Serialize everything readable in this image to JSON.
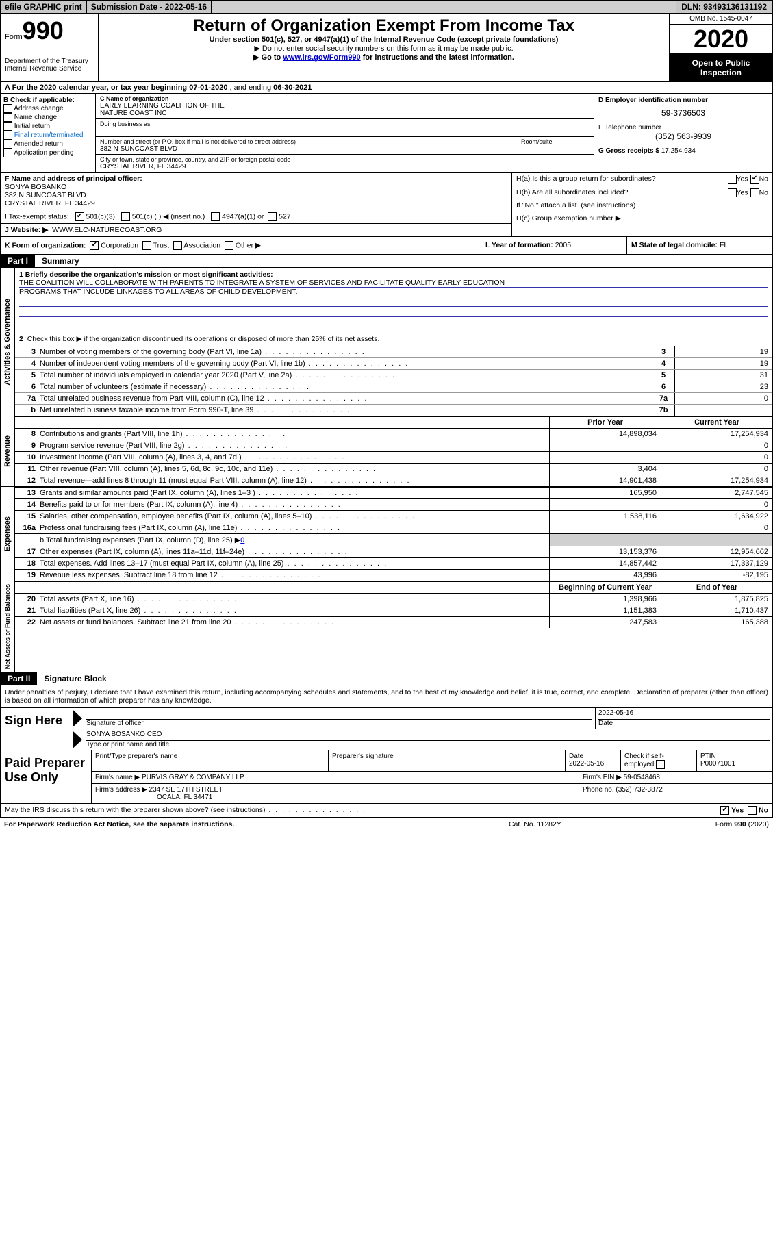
{
  "topbar": {
    "efile": "efile GRAPHIC print",
    "subdate_lbl": "Submission Date - ",
    "subdate": "2022-05-16",
    "dln_lbl": "DLN: ",
    "dln": "93493136131192"
  },
  "header": {
    "form_prefix": "Form",
    "form_no": "990",
    "title": "Return of Organization Exempt From Income Tax",
    "sub1": "Under section 501(c), 527, or 4947(a)(1) of the Internal Revenue Code (except private foundations)",
    "sub2": "▶ Do not enter social security numbers on this form as it may be made public.",
    "sub3_pre": "▶ Go to ",
    "sub3_link": "www.irs.gov/Form990",
    "sub3_post": " for instructions and the latest information.",
    "dept1": "Department of the Treasury",
    "dept2": "Internal Revenue Service",
    "omb": "OMB No. 1545-0047",
    "year": "2020",
    "open": "Open to Public Inspection"
  },
  "row_a": {
    "pre": "A For the 2020 calendar year, or tax year beginning ",
    "d1": "07-01-2020",
    "mid": " , and ending ",
    "d2": "06-30-2021"
  },
  "col_b": {
    "hdr": "B Check if applicable:",
    "addr": "Address change",
    "name": "Name change",
    "init": "Initial return",
    "final": "Final return/terminated",
    "amend": "Amended return",
    "app": "Application pending"
  },
  "col_c": {
    "name_lbl": "C Name of organization",
    "name1": "EARLY LEARNING COALITION OF THE",
    "name2": "NATURE COAST INC",
    "dba": "Doing business as",
    "addr_lbl": "Number and street (or P.O. box if mail is not delivered to street address)",
    "room_lbl": "Room/suite",
    "addr": "382 N SUNCOAST BLVD",
    "city_lbl": "City or town, state or province, country, and ZIP or foreign postal code",
    "city": "CRYSTAL RIVER, FL  34429"
  },
  "col_d": {
    "ein_lbl": "D Employer identification number",
    "ein": "59-3736503",
    "tel_lbl": "E Telephone number",
    "tel": "(352) 563-9939",
    "gross_lbl": "G Gross receipts $ ",
    "gross": "17,254,934"
  },
  "f": {
    "lbl": "F Name and address of principal officer:",
    "name": "SONYA BOSANKO",
    "addr1": "382 N SUNCOAST BLVD",
    "addr2": "CRYSTAL RIVER, FL  34429"
  },
  "h": {
    "a": "H(a)  Is this a group return for subordinates?",
    "b": "H(b)  Are all subordinates included?",
    "bnote": "If \"No,\" attach a list. (see instructions)",
    "c": "H(c)  Group exemption number ▶",
    "yes": "Yes",
    "no": "No"
  },
  "i": {
    "lbl": "I    Tax-exempt status:",
    "o1": "501(c)(3)",
    "o2": "501(c) (   ) ◀ (insert no.)",
    "o3": "4947(a)(1) or",
    "o4": "527"
  },
  "j": {
    "lbl": "J    Website: ▶",
    "val": "WWW.ELC-NATURECOAST.ORG"
  },
  "k": {
    "lbl": "K Form of organization:",
    "o1": "Corporation",
    "o2": "Trust",
    "o3": "Association",
    "o4": "Other ▶",
    "l_lbl": "L Year of formation: ",
    "l_val": "2005",
    "m_lbl": "M State of legal domicile: ",
    "m_val": "FL"
  },
  "part1": {
    "tab": "Part I",
    "title": "Summary"
  },
  "gov": {
    "label": "Activities & Governance",
    "l1": "1   Briefly describe the organization's mission or most significant activities:",
    "mission1": "THE COALITION WILL COLLABORATE WITH PARENTS TO INTEGRATE A SYSTEM OF SERVICES AND FACILITATE QUALITY EARLY EDUCATION",
    "mission2": "PROGRAMS THAT INCLUDE LINKAGES TO ALL AREAS OF CHILD DEVELOPMENT.",
    "l2": "Check this box ▶        if the organization discontinued its operations or disposed of more than 25% of its net assets.",
    "rows": [
      {
        "n": "3",
        "lbl": "Number of voting members of the governing body (Part VI, line 1a)",
        "box": "3",
        "val": "19"
      },
      {
        "n": "4",
        "lbl": "Number of independent voting members of the governing body (Part VI, line 1b)",
        "box": "4",
        "val": "19"
      },
      {
        "n": "5",
        "lbl": "Total number of individuals employed in calendar year 2020 (Part V, line 2a)",
        "box": "5",
        "val": "31"
      },
      {
        "n": "6",
        "lbl": "Total number of volunteers (estimate if necessary)",
        "box": "6",
        "val": "23"
      },
      {
        "n": "7a",
        "lbl": "Total unrelated business revenue from Part VIII, column (C), line 12",
        "box": "7a",
        "val": "0"
      },
      {
        "n": "b",
        "lbl": "Net unrelated business taxable income from Form 990-T, line 39",
        "box": "7b",
        "val": ""
      }
    ]
  },
  "rev": {
    "label": "Revenue",
    "hdr_py": "Prior Year",
    "hdr_cy": "Current Year",
    "rows": [
      {
        "n": "8",
        "lbl": "Contributions and grants (Part VIII, line 1h)",
        "py": "14,898,034",
        "cy": "17,254,934"
      },
      {
        "n": "9",
        "lbl": "Program service revenue (Part VIII, line 2g)",
        "py": "",
        "cy": "0"
      },
      {
        "n": "10",
        "lbl": "Investment income (Part VIII, column (A), lines 3, 4, and 7d )",
        "py": "",
        "cy": "0"
      },
      {
        "n": "11",
        "lbl": "Other revenue (Part VIII, column (A), lines 5, 6d, 8c, 9c, 10c, and 11e)",
        "py": "3,404",
        "cy": "0"
      },
      {
        "n": "12",
        "lbl": "Total revenue—add lines 8 through 11 (must equal Part VIII, column (A), line 12)",
        "py": "14,901,438",
        "cy": "17,254,934"
      }
    ]
  },
  "exp": {
    "label": "Expenses",
    "rows": [
      {
        "n": "13",
        "lbl": "Grants and similar amounts paid (Part IX, column (A), lines 1–3 )",
        "py": "165,950",
        "cy": "2,747,545"
      },
      {
        "n": "14",
        "lbl": "Benefits paid to or for members (Part IX, column (A), line 4)",
        "py": "",
        "cy": "0"
      },
      {
        "n": "15",
        "lbl": "Salaries, other compensation, employee benefits (Part IX, column (A), lines 5–10)",
        "py": "1,538,116",
        "cy": "1,634,922"
      },
      {
        "n": "16a",
        "lbl": "Professional fundraising fees (Part IX, column (A), line 11e)",
        "py": "",
        "cy": "0"
      }
    ],
    "l16b_pre": "b   Total fundraising expenses (Part IX, column (D), line 25) ▶",
    "l16b_val": "0",
    "rows2": [
      {
        "n": "17",
        "lbl": "Other expenses (Part IX, column (A), lines 11a–11d, 11f–24e)",
        "py": "13,153,376",
        "cy": "12,954,662"
      },
      {
        "n": "18",
        "lbl": "Total expenses. Add lines 13–17 (must equal Part IX, column (A), line 25)",
        "py": "14,857,442",
        "cy": "17,337,129"
      },
      {
        "n": "19",
        "lbl": "Revenue less expenses. Subtract line 18 from line 12",
        "py": "43,996",
        "cy": "-82,195"
      }
    ]
  },
  "net": {
    "label": "Net Assets or Fund Balances",
    "hdr_py": "Beginning of Current Year",
    "hdr_cy": "End of Year",
    "rows": [
      {
        "n": "20",
        "lbl": "Total assets (Part X, line 16)",
        "py": "1,398,966",
        "cy": "1,875,825"
      },
      {
        "n": "21",
        "lbl": "Total liabilities (Part X, line 26)",
        "py": "1,151,383",
        "cy": "1,710,437"
      },
      {
        "n": "22",
        "lbl": "Net assets or fund balances. Subtract line 21 from line 20",
        "py": "247,583",
        "cy": "165,388"
      }
    ]
  },
  "part2": {
    "tab": "Part II",
    "title": "Signature Block"
  },
  "sig": {
    "decl": "Under penalties of perjury, I declare that I have examined this return, including accompanying schedules and statements, and to the best of my knowledge and belief, it is true, correct, and complete. Declaration of preparer (other than officer) is based on all information of which preparer has any knowledge.",
    "sign_here": "Sign Here",
    "sig_officer": "Signature of officer",
    "date": "Date",
    "date_val": "2022-05-16",
    "name": "SONYA BOSANKO  CEO",
    "name_lbl": "Type or print name and title"
  },
  "prep": {
    "label": "Paid Preparer Use Only",
    "r1": {
      "c1": "Print/Type preparer's name",
      "c2": "Preparer's signature",
      "c3_lbl": "Date",
      "c3": "2022-05-16",
      "c4_lbl": "Check         if self-employed",
      "c5_lbl": "PTIN",
      "c5": "P00071001"
    },
    "r2": {
      "c1": "Firm's name     ▶",
      "c1v": "PURVIS GRAY & COMPANY LLP",
      "c2": "Firm's EIN ▶",
      "c2v": "59-0548468"
    },
    "r3": {
      "c1": "Firm's address ▶",
      "c1v": "2347 SE 17TH STREET",
      "c1v2": "OCALA, FL  34471",
      "c2": "Phone no. ",
      "c2v": "(352) 732-3872"
    }
  },
  "discuss": {
    "lbl": "May the IRS discuss this return with the preparer shown above? (see instructions)",
    "yes": "Yes",
    "no": "No"
  },
  "footer": {
    "l": "For Paperwork Reduction Act Notice, see the separate instructions.",
    "m": "Cat. No. 11282Y",
    "r": "Form 990 (2020)"
  },
  "colors": {
    "link": "#0000cc",
    "shade": "#d0d0d0",
    "uline": "#3333aa"
  }
}
